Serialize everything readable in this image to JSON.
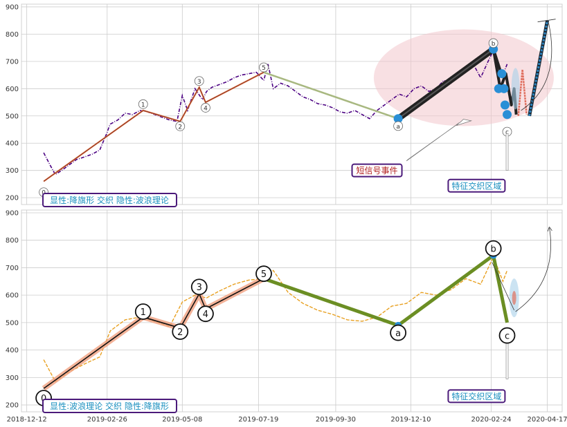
{
  "chart_data": [
    {
      "type": "line",
      "panel": "top",
      "ylim": [
        175,
        910
      ],
      "yticks": [
        200,
        300,
        400,
        500,
        600,
        700,
        800,
        900
      ],
      "grid": true,
      "series": [
        {
          "role": "price",
          "color": "#4b0082",
          "style": "dash-dot",
          "x": [
            "2018-12-28",
            "2019-01-03",
            "2019-01-08",
            "2019-01-14",
            "2019-01-21",
            "2019-01-28",
            "2019-02-05",
            "2019-02-12",
            "2019-02-19",
            "2019-02-26",
            "2019-02-28",
            "2019-03-01",
            "2019-03-08",
            "2019-03-15",
            "2019-03-22",
            "2019-03-29",
            "2019-04-05",
            "2019-04-12",
            "2019-04-19",
            "2019-04-26",
            "2019-05-03",
            "2019-05-08",
            "2019-05-13",
            "2019-05-20",
            "2019-05-27",
            "2019-05-31",
            "2019-06-05",
            "2019-06-12",
            "2019-06-19",
            "2019-06-26",
            "2019-07-03",
            "2019-07-10",
            "2019-07-17",
            "2019-07-24",
            "2019-07-28",
            "2019-08-02",
            "2019-08-09",
            "2019-08-16",
            "2019-08-23",
            "2019-08-30",
            "2019-09-06",
            "2019-09-13",
            "2019-09-20",
            "2019-09-27",
            "2019-10-04",
            "2019-10-11",
            "2019-10-18",
            "2019-10-25",
            "2019-11-01",
            "2019-11-08",
            "2019-11-15",
            "2019-11-22",
            "2019-11-29",
            "2019-12-06",
            "2019-12-13",
            "2019-12-20",
            "2019-12-27",
            "2020-01-03",
            "2020-01-10",
            "2020-01-17",
            "2020-01-24",
            "2020-01-31",
            "2020-02-07",
            "2020-02-14",
            "2020-02-21",
            "2020-02-26",
            "2020-03-02",
            "2020-03-06",
            "2020-03-10"
          ],
          "y": [
            365,
            320,
            285,
            300,
            320,
            340,
            350,
            360,
            375,
            440,
            462,
            470,
            485,
            510,
            505,
            520,
            515,
            505,
            495,
            485,
            480,
            575,
            520,
            600,
            560,
            590,
            605,
            615,
            625,
            640,
            650,
            655,
            660,
            630,
            690,
            600,
            620,
            610,
            590,
            570,
            560,
            545,
            540,
            530,
            515,
            510,
            520,
            505,
            490,
            520,
            540,
            560,
            580,
            570,
            600,
            610,
            590,
            600,
            630,
            620,
            650,
            660,
            690,
            640,
            700,
            740,
            680,
            650,
            690
          ]
        },
        {
          "role": "wave-structure",
          "color": "#e07040",
          "x": [
            "2018-12-28",
            "2019-04-01",
            "2019-05-06",
            "2019-05-24",
            "2019-05-30",
            "2019-07-24"
          ],
          "y": [
            260,
            520,
            480,
            605,
            550,
            660
          ]
        },
        {
          "role": "correction-leg",
          "color": "#a8b880",
          "x": [
            "2019-07-24",
            "2019-11-28"
          ],
          "y": [
            660,
            490
          ]
        },
        {
          "role": "thick-leg",
          "color": "#222222",
          "x": [
            "2019-11-28",
            "2020-02-26"
          ],
          "y": [
            490,
            745
          ]
        },
        {
          "role": "forecast",
          "color": "#2e86c1",
          "x": [
            "2020-03-31",
            "2020-04-17"
          ],
          "y": [
            500,
            850
          ]
        }
      ],
      "wave_labels": [
        {
          "label": "0",
          "x": "2018-12-28",
          "y": 220
        },
        {
          "label": "1",
          "x": "2019-04-01",
          "y": 543
        },
        {
          "label": "2",
          "x": "2019-05-06",
          "y": 462
        },
        {
          "label": "3",
          "x": "2019-05-24",
          "y": 628
        },
        {
          "label": "4",
          "x": "2019-05-30",
          "y": 530
        },
        {
          "label": "5",
          "x": "2019-07-24",
          "y": 678
        },
        {
          "label": "a",
          "x": "2019-11-28",
          "y": 463
        },
        {
          "label": "b",
          "x": "2020-02-26",
          "y": 767
        },
        {
          "label": "c",
          "x": "2020-03-10",
          "y": 442
        }
      ],
      "annotations": {
        "signal_event": "短信号事件",
        "cross_zone": "特征交织区域",
        "caption": "显性:降旗形 交织 隐性:波浪理论"
      }
    },
    {
      "type": "line",
      "panel": "bottom",
      "ylim": [
        175,
        910
      ],
      "yticks": [
        200,
        300,
        400,
        500,
        600,
        700,
        800,
        900
      ],
      "grid": true,
      "series": [
        {
          "role": "price",
          "color": "#e8a020",
          "style": "dashed",
          "x": [
            "2018-12-28",
            "2019-01-08",
            "2019-01-21",
            "2019-02-05",
            "2019-02-19",
            "2019-03-01",
            "2019-03-15",
            "2019-03-29",
            "2019-04-12",
            "2019-04-26",
            "2019-05-08",
            "2019-05-20",
            "2019-05-31",
            "2019-06-12",
            "2019-06-26",
            "2019-07-10",
            "2019-07-24",
            "2019-08-02",
            "2019-08-16",
            "2019-08-30",
            "2019-09-13",
            "2019-09-27",
            "2019-10-11",
            "2019-10-25",
            "2019-11-08",
            "2019-11-22",
            "2019-12-06",
            "2019-12-20",
            "2020-01-03",
            "2020-01-17",
            "2020-01-31",
            "2020-02-14",
            "2020-02-26",
            "2020-03-06",
            "2020-03-10"
          ],
          "y": [
            365,
            285,
            320,
            350,
            375,
            470,
            510,
            520,
            505,
            485,
            575,
            600,
            590,
            615,
            640,
            655,
            660,
            690,
            610,
            570,
            545,
            530,
            510,
            505,
            520,
            560,
            570,
            610,
            600,
            620,
            660,
            640,
            740,
            650,
            690
          ]
        },
        {
          "role": "wave-structure",
          "color": "#111111",
          "x": [
            "2018-12-28",
            "2019-04-01",
            "2019-05-06",
            "2019-05-24",
            "2019-05-30",
            "2019-07-24"
          ],
          "y": [
            260,
            520,
            480,
            605,
            550,
            660
          ]
        },
        {
          "role": "correction-legs",
          "color": "#6b8e23",
          "x": [
            "2019-07-24",
            "2019-11-28",
            "2020-02-26",
            "2020-03-10"
          ],
          "y": [
            660,
            490,
            745,
            500
          ]
        }
      ],
      "wave_labels": [
        {
          "label": "0",
          "x": "2018-12-28",
          "y": 225
        },
        {
          "label": "1",
          "x": "2019-04-01",
          "y": 540
        },
        {
          "label": "2",
          "x": "2019-05-06",
          "y": 467
        },
        {
          "label": "3",
          "x": "2019-05-24",
          "y": 630
        },
        {
          "label": "4",
          "x": "2019-05-30",
          "y": 532
        },
        {
          "label": "5",
          "x": "2019-07-24",
          "y": 678
        },
        {
          "label": "a",
          "x": "2019-11-28",
          "y": 463
        },
        {
          "label": "b",
          "x": "2020-02-26",
          "y": 770
        },
        {
          "label": "c",
          "x": "2020-03-10",
          "y": 453
        }
      ],
      "annotations": {
        "cross_zone": "特征交织区域",
        "caption": "显性:波浪理论 交织 隐性:降旗形"
      },
      "xticks": [
        "2018-12-12",
        "2019-02-26",
        "2019-05-08",
        "2019-07-19",
        "2019-09-30",
        "2019-12-10",
        "2020-02-24",
        "2020-04-17"
      ]
    }
  ],
  "colors": {
    "grid": "#cccccc",
    "caption_text": "#1a8fbf",
    "caption_border": "#4b1a7a",
    "signal_text": "#b22222",
    "ellipse": "#f2c6cc"
  }
}
